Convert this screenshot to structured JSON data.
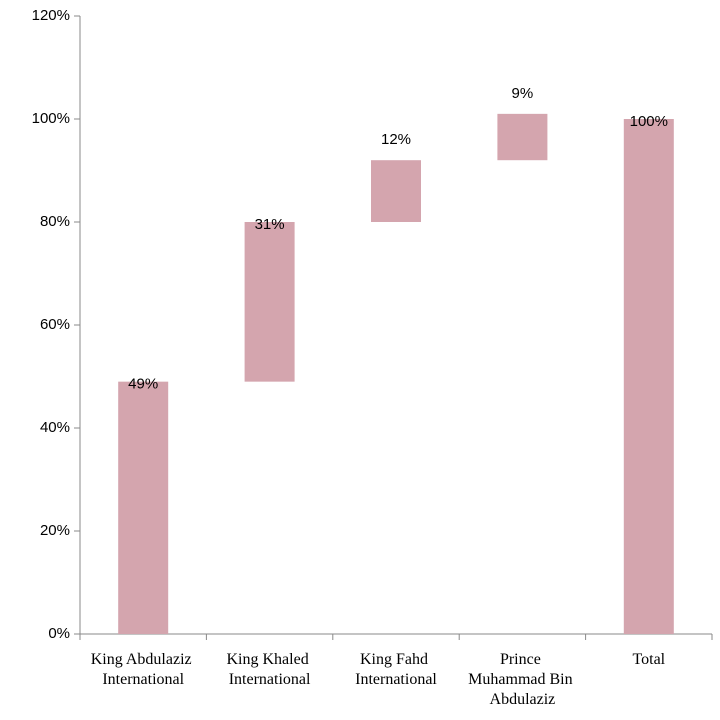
{
  "chart_data": {
    "type": "waterfall",
    "categories": [
      "King Abdulaziz International",
      "King Khaled International",
      "King Fahd International",
      "Prince Muhammad Bin Abdulaziz",
      "Total"
    ],
    "values": [
      49,
      31,
      12,
      9,
      100
    ],
    "value_labels": [
      "49%",
      "31%",
      "12%",
      "9%",
      "100%"
    ],
    "color": "#d4a5ae",
    "ylim": [
      0,
      120
    ],
    "yticks": [
      {
        "value": 0,
        "label": "0%"
      },
      {
        "value": 20,
        "label": "20%"
      },
      {
        "value": 40,
        "label": "40%"
      },
      {
        "value": 60,
        "label": "60%"
      },
      {
        "value": 80,
        "label": "80%"
      },
      {
        "value": 100,
        "label": "100%"
      },
      {
        "value": 120,
        "label": "120%"
      }
    ],
    "grid": false
  }
}
